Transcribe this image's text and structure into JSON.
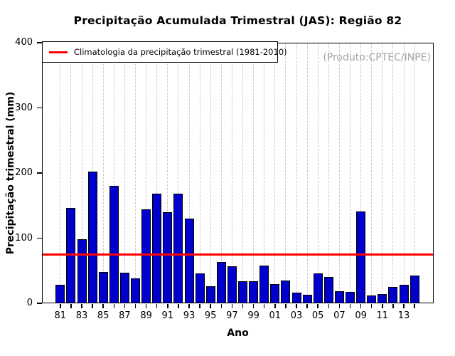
{
  "watermark": "(Produto:CPTEC/INPE)",
  "chart_data": {
    "type": "bar",
    "title": "Precipitação Acumulada Trimestral (JAS): Região 82",
    "xlabel": "Ano",
    "ylabel": "Precipitação trimestral (mm)",
    "ylim": [
      0,
      400
    ],
    "yticks": [
      0,
      100,
      200,
      300,
      400
    ],
    "grid": "vertical dashed line at every year",
    "legend_position": "top-left",
    "bar_color": "#0000CC",
    "line_color": "#FF0000",
    "watermark_color": "#A3A3A3",
    "categories": [
      "81",
      "82",
      "83",
      "84",
      "85",
      "86",
      "87",
      "88",
      "89",
      "90",
      "91",
      "92",
      "93",
      "94",
      "95",
      "96",
      "97",
      "98",
      "99",
      "00",
      "01",
      "02",
      "03",
      "04",
      "05",
      "06",
      "07",
      "08",
      "09",
      "10",
      "11",
      "12",
      "13",
      "14"
    ],
    "xtick_label_step": 2,
    "values": [
      28,
      146,
      98,
      202,
      48,
      180,
      47,
      38,
      144,
      168,
      140,
      168,
      130,
      46,
      26,
      63,
      57,
      34,
      34,
      58,
      30,
      35,
      16,
      13,
      46,
      41,
      19,
      17,
      141,
      12,
      14,
      25,
      28,
      43
    ],
    "climatology": {
      "label": "Climatologia da precipitação trimestral (1981-2010)",
      "value": 75,
      "period": "1981-2010"
    }
  }
}
